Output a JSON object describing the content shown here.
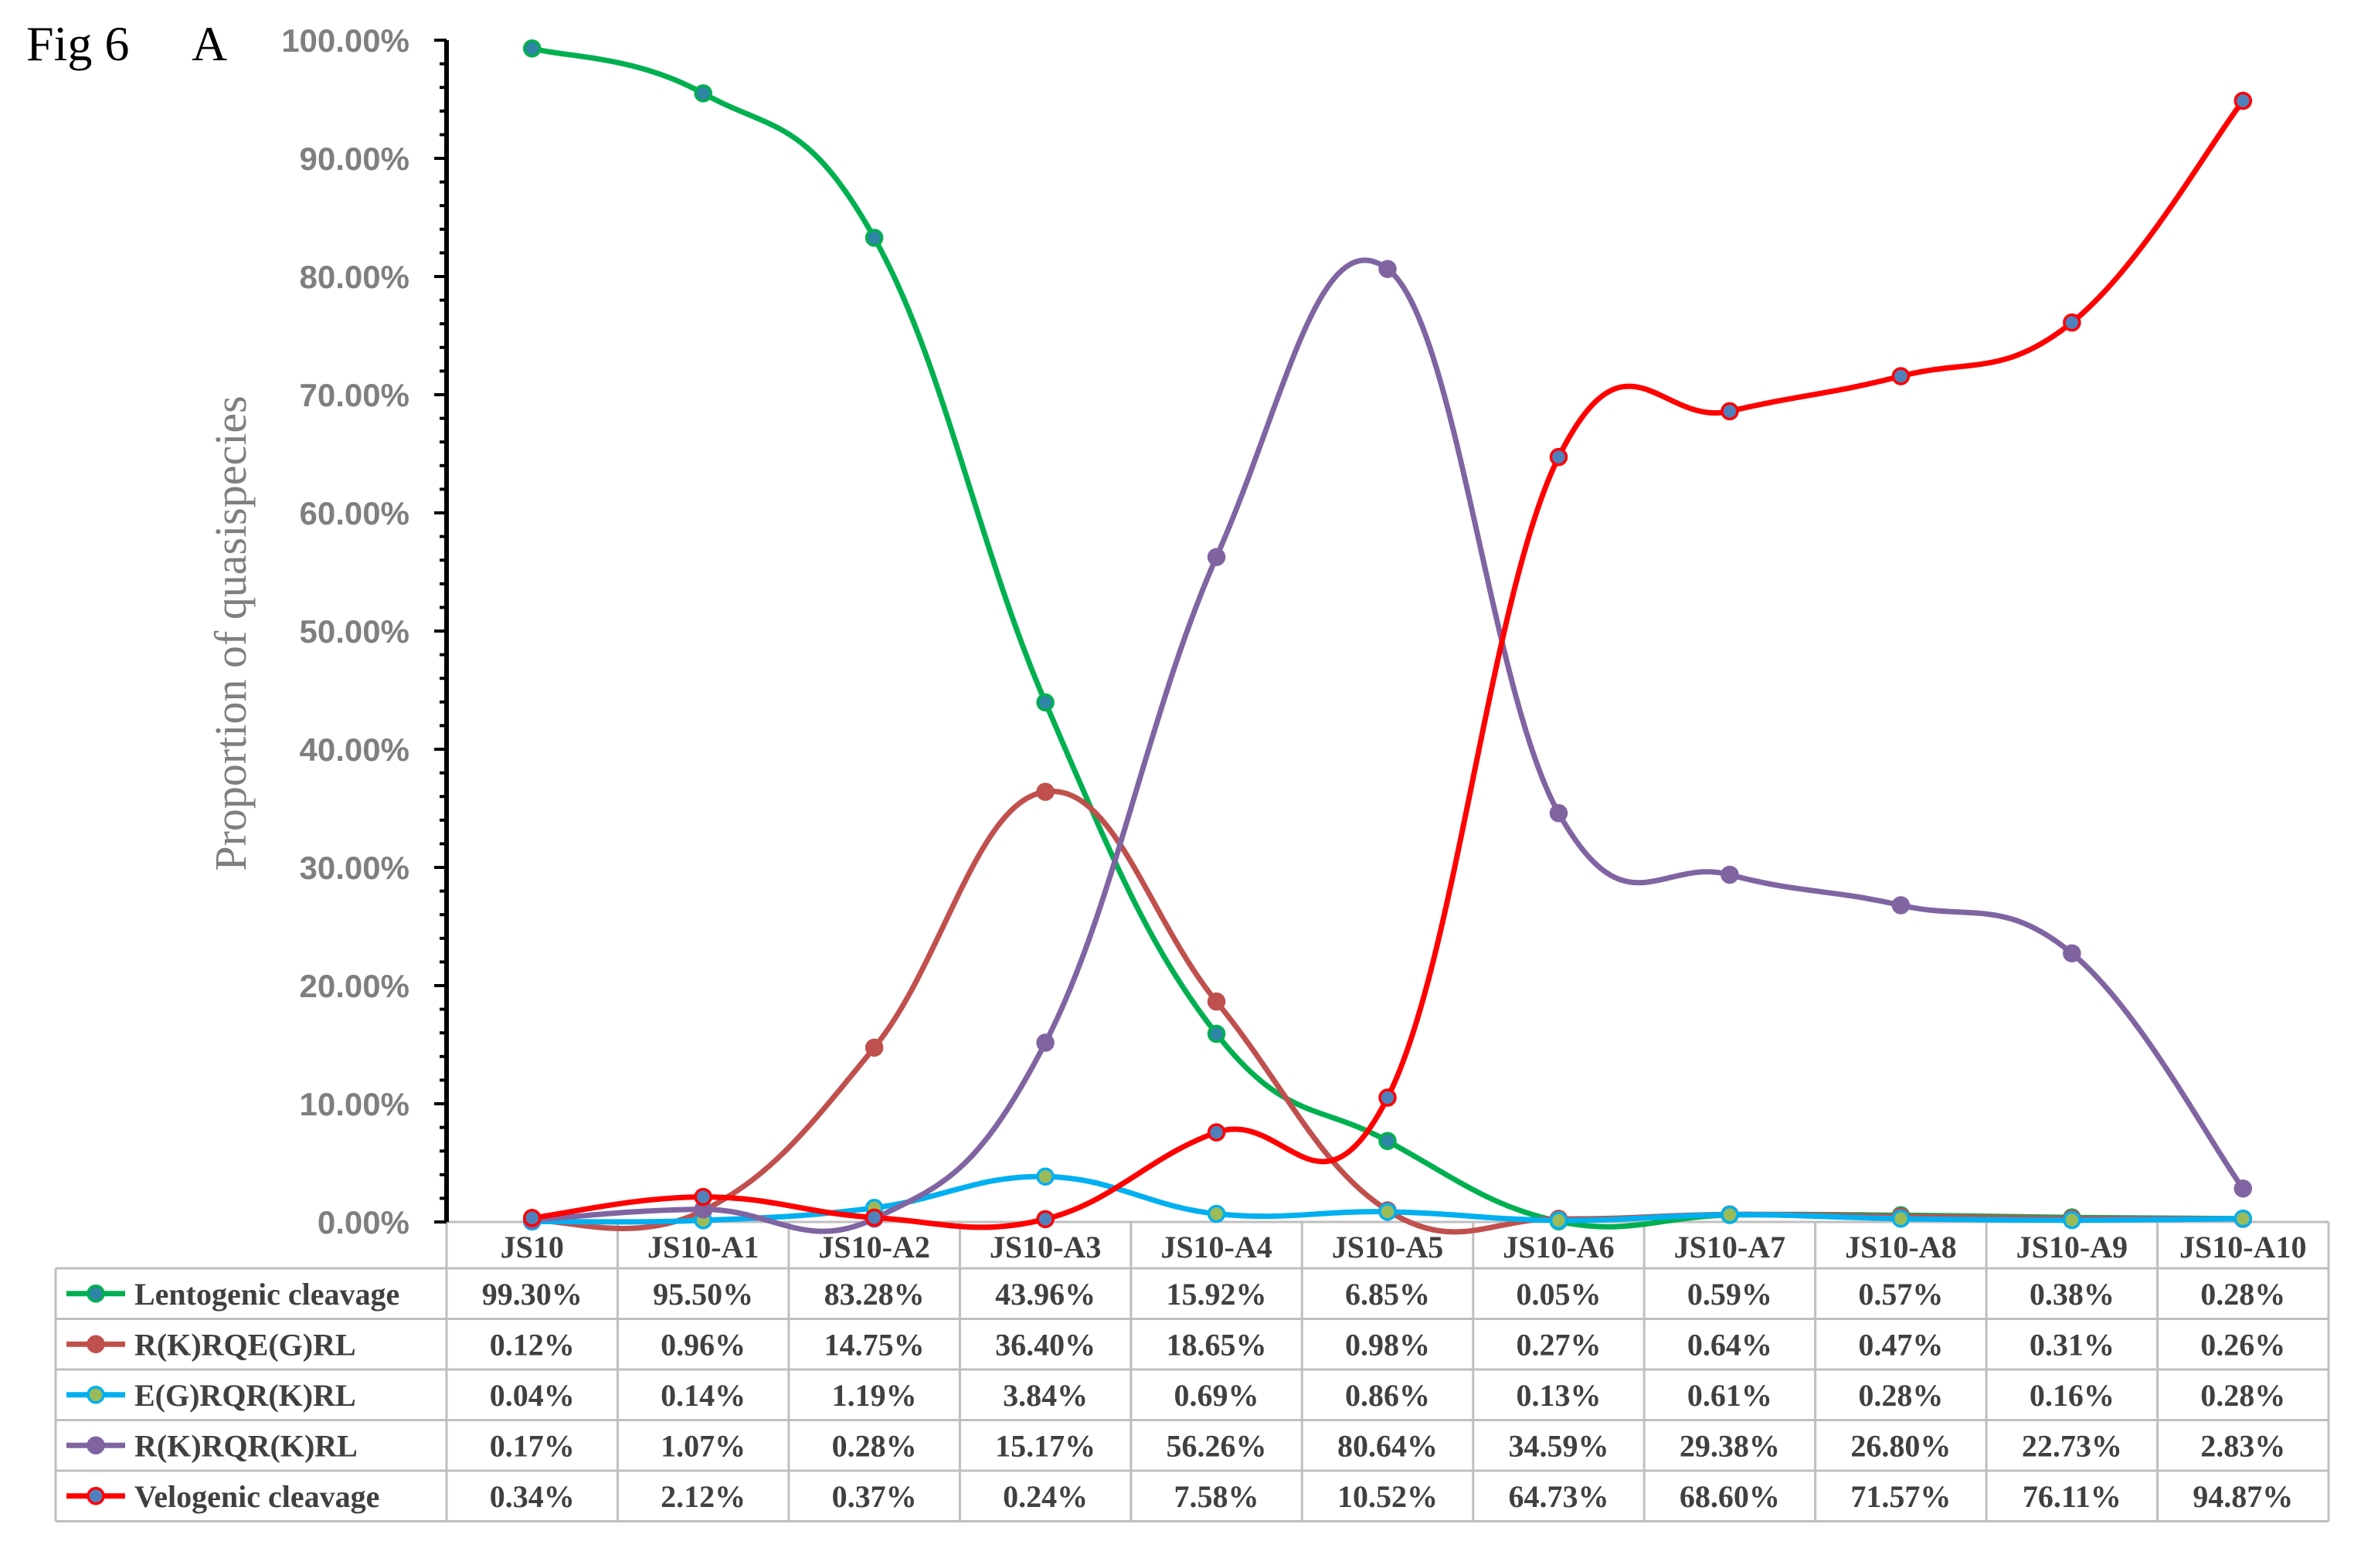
{
  "figure": {
    "label": "Fig 6",
    "panel": "A"
  },
  "chart_data": {
    "type": "line",
    "title": "",
    "xlabel": "",
    "ylabel": "Proportion of quasispecies",
    "ylim": [
      0,
      100
    ],
    "y_tick_labels": [
      "0.00%",
      "10.00%",
      "20.00%",
      "30.00%",
      "40.00%",
      "50.00%",
      "60.00%",
      "70.00%",
      "80.00%",
      "90.00%",
      "100.00%"
    ],
    "categories": [
      "JS10",
      "JS10-A1",
      "JS10-A2",
      "JS10-A3",
      "JS10-A4",
      "JS10-A5",
      "JS10-A6",
      "JS10-A7",
      "JS10-A8",
      "JS10-A9",
      "JS10-A10"
    ],
    "legend": "data-table",
    "grid": false,
    "series": [
      {
        "name": "Lentogenic cleavage",
        "color": "#00b050",
        "marker": "#2e86a6",
        "values": [
          99.3,
          95.5,
          83.28,
          43.96,
          15.92,
          6.85,
          0.05,
          0.59,
          0.57,
          0.38,
          0.28
        ],
        "labels": [
          "99.30%",
          "95.50%",
          "83.28%",
          "43.96%",
          "15.92%",
          "6.85%",
          "0.05%",
          "0.59%",
          "0.57%",
          "0.38%",
          "0.28%"
        ]
      },
      {
        "name": "R(K)RQE(G)RL",
        "color": "#c0504d",
        "marker": "#c0504d",
        "values": [
          0.12,
          0.96,
          14.75,
          36.4,
          18.65,
          0.98,
          0.27,
          0.64,
          0.47,
          0.31,
          0.26
        ],
        "labels": [
          "0.12%",
          "0.96%",
          "14.75%",
          "36.40%",
          "18.65%",
          "0.98%",
          "0.27%",
          "0.64%",
          "0.47%",
          "0.31%",
          "0.26%"
        ]
      },
      {
        "name": "E(G)RQR(K)RL",
        "color": "#00b0f0",
        "marker": "#9bbb59",
        "values": [
          0.04,
          0.14,
          1.19,
          3.84,
          0.69,
          0.86,
          0.13,
          0.61,
          0.28,
          0.16,
          0.28
        ],
        "labels": [
          "0.04%",
          "0.14%",
          "1.19%",
          "3.84%",
          "0.69%",
          "0.86%",
          "0.13%",
          "0.61%",
          "0.28%",
          "0.16%",
          "0.28%"
        ]
      },
      {
        "name": "R(K)RQR(K)RL",
        "color": "#8064a2",
        "marker": "#8064a2",
        "values": [
          0.17,
          1.07,
          0.28,
          15.17,
          56.26,
          80.64,
          34.59,
          29.38,
          26.8,
          22.73,
          2.83
        ],
        "labels": [
          "0.17%",
          "1.07%",
          "0.28%",
          "15.17%",
          "56.26%",
          "80.64%",
          "34.59%",
          "29.38%",
          "26.80%",
          "22.73%",
          "2.83%"
        ]
      },
      {
        "name": "Velogenic cleavage",
        "color": "#ff0000",
        "marker": "#4f81bd",
        "values": [
          0.34,
          2.12,
          0.37,
          0.24,
          7.58,
          10.52,
          64.73,
          68.6,
          71.57,
          76.11,
          94.87
        ],
        "labels": [
          "0.34%",
          "2.12%",
          "0.37%",
          "0.24%",
          "7.58%",
          "10.52%",
          "64.73%",
          "68.60%",
          "71.57%",
          "76.11%",
          "94.87%"
        ]
      }
    ]
  }
}
